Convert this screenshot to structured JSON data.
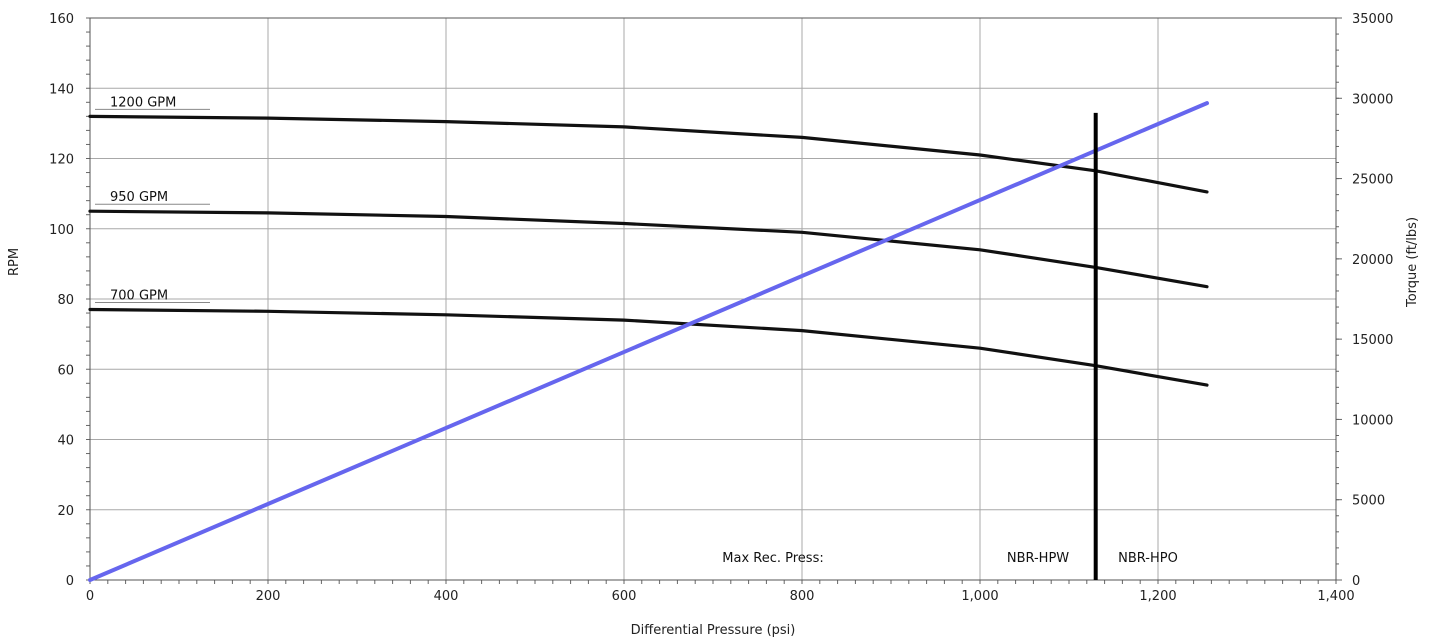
{
  "chart_data": {
    "type": "line",
    "xlabel": "Differential Pressure (psi)",
    "ylabel": "RPM",
    "y2label": "Torque (ft/lbs)",
    "xlim": [
      0,
      1400
    ],
    "ylim": [
      0,
      160
    ],
    "y2lim": [
      0,
      35000
    ],
    "x_ticks": [
      0,
      200,
      400,
      600,
      800,
      1000,
      1200,
      1400
    ],
    "x_tick_labels": [
      "0",
      "200",
      "400",
      "600",
      "800",
      "1,000",
      "1,200",
      "1,400"
    ],
    "y_ticks": [
      0,
      20,
      40,
      60,
      80,
      100,
      120,
      140,
      160
    ],
    "y_tick_labels": [
      "0",
      "20",
      "40",
      "60",
      "80",
      "100",
      "120",
      "140",
      "160"
    ],
    "y2_ticks": [
      0,
      5000,
      10000,
      15000,
      20000,
      25000,
      30000,
      35000
    ],
    "y2_tick_labels": [
      "0",
      "5000",
      "10000",
      "15000",
      "20000",
      "25000",
      "30000",
      "35000"
    ],
    "grid": true,
    "series": [
      {
        "name": "1200 GPM",
        "axis": "left",
        "color": "#111111",
        "x": [
          0,
          200,
          400,
          600,
          800,
          1000,
          1130,
          1255
        ],
        "y": [
          132,
          131.5,
          130.5,
          129,
          126,
          121,
          116.5,
          110.5
        ]
      },
      {
        "name": "950 GPM",
        "axis": "left",
        "color": "#111111",
        "x": [
          0,
          200,
          400,
          600,
          800,
          1000,
          1130,
          1255
        ],
        "y": [
          105,
          104.5,
          103.5,
          101.5,
          99,
          94,
          89,
          83.5
        ]
      },
      {
        "name": "700 GPM",
        "axis": "left",
        "color": "#111111",
        "x": [
          0,
          200,
          400,
          600,
          800,
          1000,
          1130,
          1255
        ],
        "y": [
          77,
          76.5,
          75.5,
          74,
          71,
          66,
          61,
          55.5
        ]
      },
      {
        "name": "Torque",
        "axis": "right",
        "color": "#6666ee",
        "x": [
          0,
          1255
        ],
        "y": [
          0,
          29700
        ]
      }
    ],
    "vertical_marker": {
      "x": 1130,
      "y_top": 133,
      "color": "#000000"
    },
    "annotations": {
      "max_rec_press": "Max Rec. Press:",
      "left_of_marker": "NBR-HPW",
      "right_of_marker": "NBR-HPO"
    }
  }
}
